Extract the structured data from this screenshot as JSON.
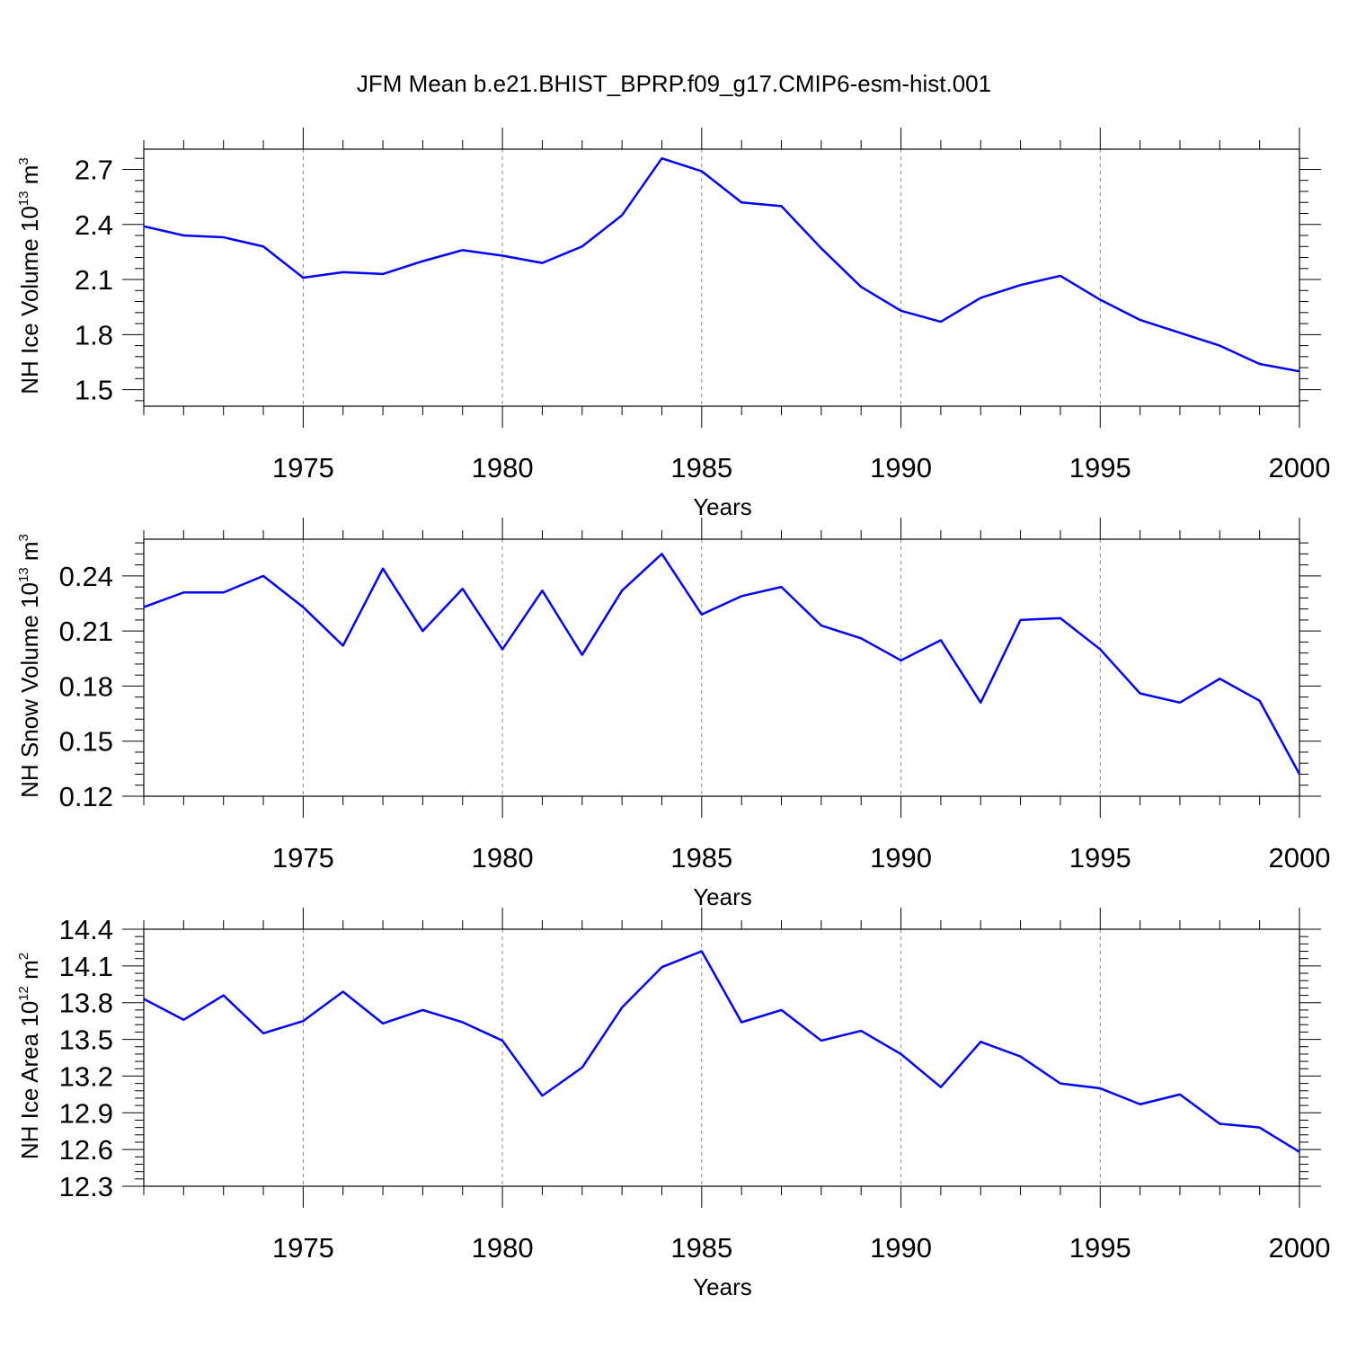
{
  "title": "JFM Mean b.e21.BHIST_BPRP.f09_g17.CMIP6-esm-hist.001",
  "colors": {
    "line": "#0000ff",
    "axis": "#000000",
    "grid": "#888888"
  },
  "chart_data": [
    {
      "type": "line",
      "ylabel": {
        "main": "NH Ice Volume 10",
        "exponent": "13",
        "unit": " m",
        "unit_exponent": "3"
      },
      "xlabel": "Years",
      "xlim": [
        1971,
        2000
      ],
      "ylim": [
        1.41,
        2.81
      ],
      "yticks": [
        "1.5",
        "1.8",
        "2.1",
        "2.4",
        "2.7"
      ],
      "xticks": [
        "1975",
        "1980",
        "1985",
        "1990",
        "1995",
        "2000"
      ],
      "grid": "vertical dashed at major x ticks",
      "x": [
        1971,
        1972,
        1973,
        1974,
        1975,
        1976,
        1977,
        1978,
        1979,
        1980,
        1981,
        1982,
        1983,
        1984,
        1985,
        1986,
        1987,
        1988,
        1989,
        1990,
        1991,
        1992,
        1993,
        1994,
        1995,
        1996,
        1997,
        1998,
        1999,
        2000
      ],
      "series": [
        {
          "values": [
            2.39,
            2.34,
            2.33,
            2.28,
            2.11,
            2.14,
            2.13,
            2.2,
            2.26,
            2.23,
            2.19,
            2.28,
            2.45,
            2.76,
            2.69,
            2.52,
            2.5,
            2.27,
            2.06,
            1.93,
            1.87,
            2.0,
            2.07,
            2.12,
            1.99,
            1.88,
            1.81,
            1.74,
            1.64,
            1.6
          ]
        }
      ]
    },
    {
      "type": "line",
      "ylabel": {
        "main": "NH Snow Volume 10",
        "exponent": "13",
        "unit": " m",
        "unit_exponent": "3"
      },
      "xlabel": "Years",
      "xlim": [
        1971,
        2000
      ],
      "ylim": [
        0.12,
        0.26
      ],
      "yticks": [
        "0.12",
        "0.15",
        "0.18",
        "0.21",
        "0.24"
      ],
      "xticks": [
        "1975",
        "1980",
        "1985",
        "1990",
        "1995",
        "2000"
      ],
      "grid": "vertical dashed at major x ticks",
      "x": [
        1971,
        1972,
        1973,
        1974,
        1975,
        1976,
        1977,
        1978,
        1979,
        1980,
        1981,
        1982,
        1983,
        1984,
        1985,
        1986,
        1987,
        1988,
        1989,
        1990,
        1991,
        1992,
        1993,
        1994,
        1995,
        1996,
        1997,
        1998,
        1999,
        2000
      ],
      "series": [
        {
          "values": [
            0.223,
            0.231,
            0.231,
            0.24,
            0.223,
            0.202,
            0.244,
            0.21,
            0.233,
            0.2,
            0.232,
            0.197,
            0.232,
            0.252,
            0.219,
            0.229,
            0.234,
            0.213,
            0.206,
            0.194,
            0.205,
            0.171,
            0.216,
            0.217,
            0.2,
            0.176,
            0.171,
            0.184,
            0.172,
            0.132
          ]
        }
      ]
    },
    {
      "type": "line",
      "ylabel": {
        "main": "NH Ice Area 10",
        "exponent": "12",
        "unit": " m",
        "unit_exponent": "2"
      },
      "xlabel": "Years",
      "xlim": [
        1971,
        2000
      ],
      "ylim": [
        12.3,
        14.4
      ],
      "yticks": [
        "12.3",
        "12.6",
        "12.9",
        "13.2",
        "13.5",
        "13.8",
        "14.1",
        "14.4"
      ],
      "xticks": [
        "1975",
        "1980",
        "1985",
        "1990",
        "1995",
        "2000"
      ],
      "grid": "vertical dashed at major x ticks",
      "x": [
        1971,
        1972,
        1973,
        1974,
        1975,
        1976,
        1977,
        1978,
        1979,
        1980,
        1981,
        1982,
        1983,
        1984,
        1985,
        1986,
        1987,
        1988,
        1989,
        1990,
        1991,
        1992,
        1993,
        1994,
        1995,
        1996,
        1997,
        1998,
        1999,
        2000
      ],
      "series": [
        {
          "values": [
            13.83,
            13.66,
            13.86,
            13.55,
            13.65,
            13.89,
            13.63,
            13.74,
            13.64,
            13.49,
            13.04,
            13.27,
            13.76,
            14.09,
            14.22,
            13.64,
            13.74,
            13.49,
            13.57,
            13.38,
            13.11,
            13.48,
            13.36,
            13.14,
            13.1,
            12.97,
            13.05,
            12.81,
            12.78,
            12.58
          ]
        }
      ]
    }
  ]
}
